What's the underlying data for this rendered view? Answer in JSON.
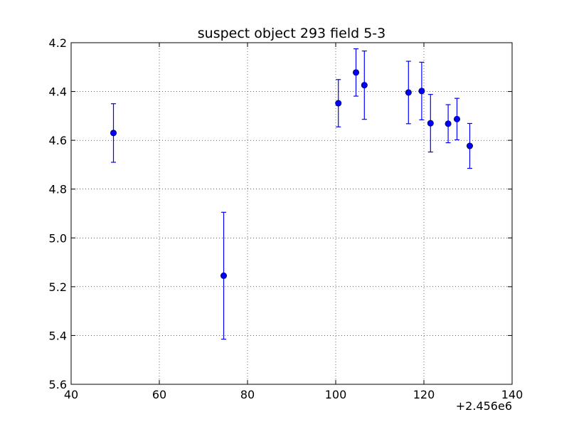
{
  "chart_data": {
    "type": "scatter",
    "title": "suspect object 293 field 5-3",
    "xlabel": "",
    "ylabel": "",
    "x_offset_label": "+2.456e6",
    "xlim": [
      40,
      140
    ],
    "ylim": [
      4.2,
      5.6
    ],
    "y_inverted": true,
    "grid": true,
    "x_ticks": [
      "40",
      "60",
      "80",
      "100",
      "120",
      "140"
    ],
    "y_ticks": [
      "4.2",
      "4.4",
      "4.6",
      "4.8",
      "5.0",
      "5.2",
      "5.4",
      "5.6"
    ],
    "color": "#0000ff",
    "series": [
      {
        "points": [
          {
            "x": 49.6,
            "y": 4.57,
            "err": 0.12
          },
          {
            "x": 74.6,
            "y": 5.155,
            "err": 0.26
          },
          {
            "x": 100.6,
            "y": 4.448,
            "err": 0.097
          },
          {
            "x": 104.6,
            "y": 4.322,
            "err": 0.097
          },
          {
            "x": 106.5,
            "y": 4.374,
            "err": 0.14
          },
          {
            "x": 116.5,
            "y": 4.404,
            "err": 0.128
          },
          {
            "x": 119.5,
            "y": 4.398,
            "err": 0.118
          },
          {
            "x": 121.5,
            "y": 4.53,
            "err": 0.118
          },
          {
            "x": 125.5,
            "y": 4.532,
            "err": 0.078
          },
          {
            "x": 127.5,
            "y": 4.513,
            "err": 0.085
          },
          {
            "x": 130.4,
            "y": 4.623,
            "err": 0.092
          }
        ]
      }
    ]
  }
}
